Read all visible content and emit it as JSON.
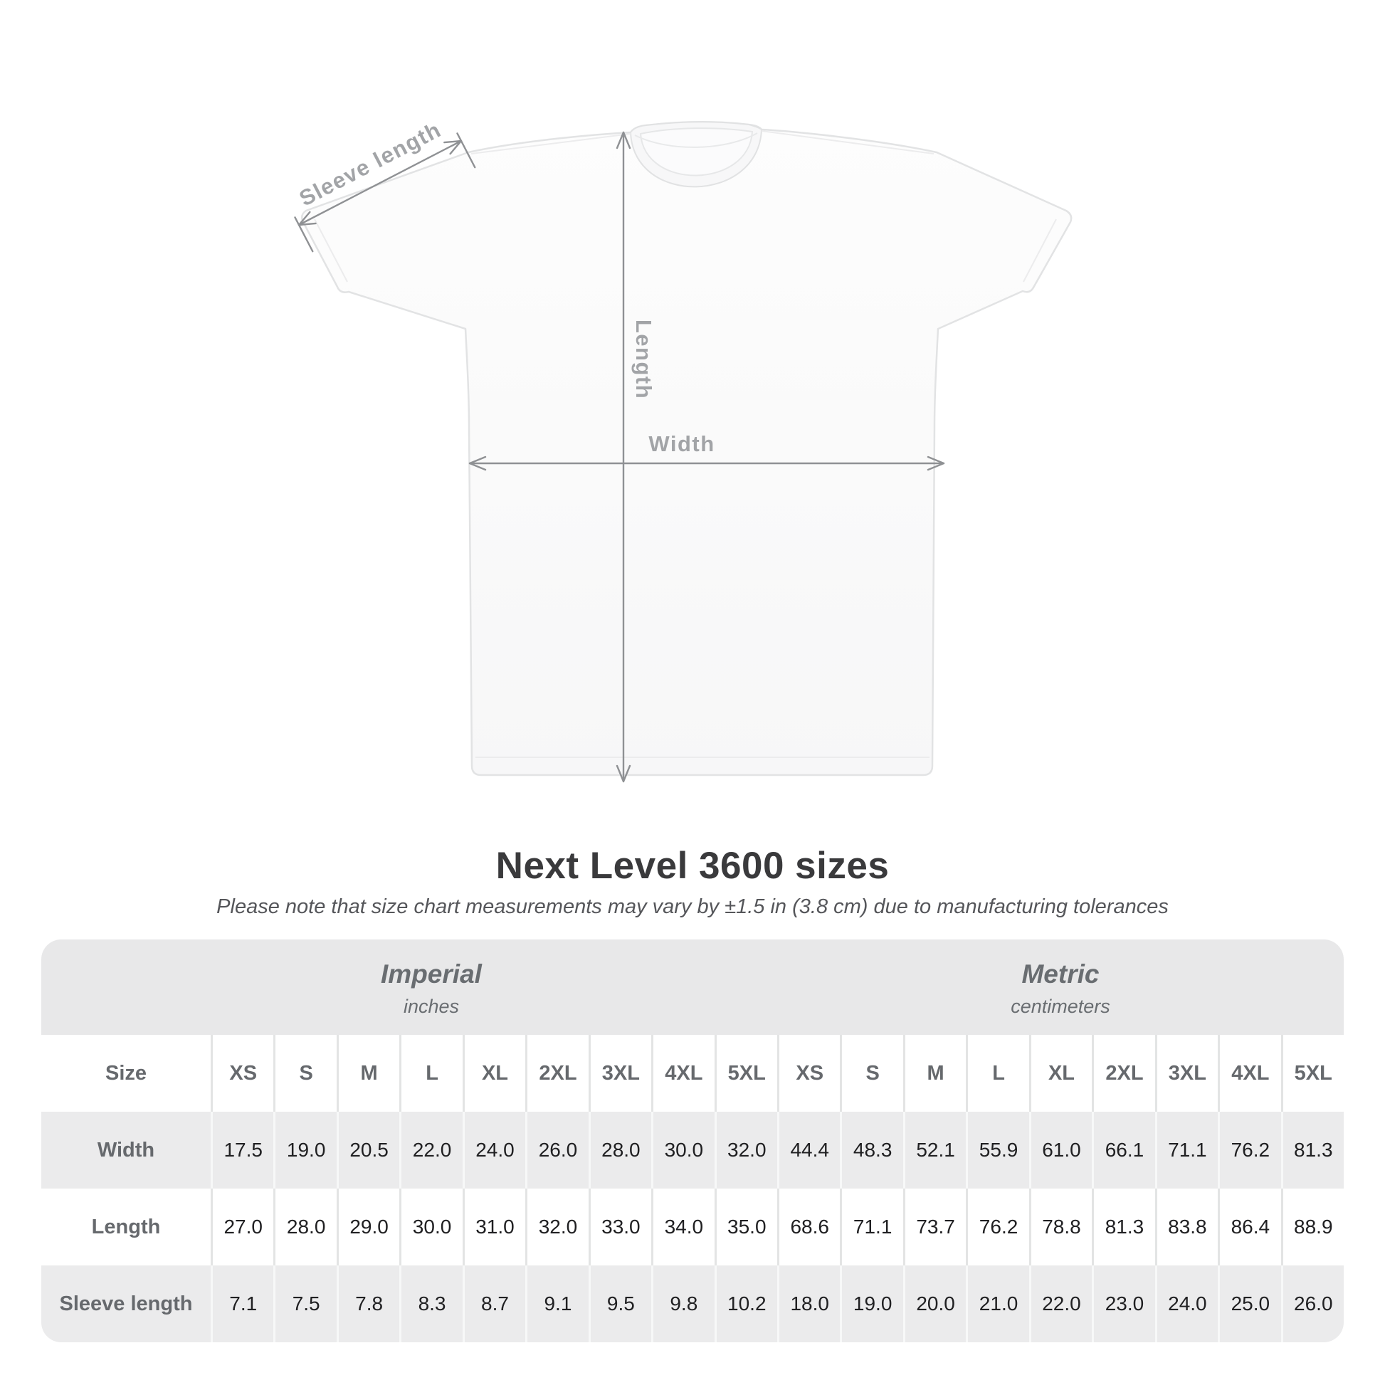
{
  "shirt_diagram": {
    "sleeve_label": "Sleeve length",
    "length_label": "Length",
    "width_label": "Width"
  },
  "heading": {
    "title": "Next Level 3600 sizes",
    "subtitle": "Please note that size chart measurements may vary by ±1.5 in (3.8 cm) due to manufacturing tolerances"
  },
  "chart_data": {
    "type": "table",
    "title": "Next Level 3600 sizes",
    "note": "Please note that size chart measurements may vary by ±1.5 in (3.8 cm) due to manufacturing tolerances",
    "unit_groups": [
      {
        "name": "Imperial",
        "unit": "inches"
      },
      {
        "name": "Metric",
        "unit": "centimeters"
      }
    ],
    "columns": [
      "Size",
      "XS",
      "S",
      "M",
      "L",
      "XL",
      "2XL",
      "3XL",
      "4XL",
      "5XL",
      "XS",
      "S",
      "M",
      "L",
      "XL",
      "2XL",
      "3XL",
      "4XL",
      "5XL"
    ],
    "rows": [
      [
        "Width",
        "17.5",
        "19.0",
        "20.5",
        "22.0",
        "24.0",
        "26.0",
        "28.0",
        "30.0",
        "32.0",
        "44.4",
        "48.3",
        "52.1",
        "55.9",
        "61.0",
        "66.1",
        "71.1",
        "76.2",
        "81.3"
      ],
      [
        "Length",
        "27.0",
        "28.0",
        "29.0",
        "30.0",
        "31.0",
        "32.0",
        "33.0",
        "34.0",
        "35.0",
        "68.6",
        "71.1",
        "73.7",
        "76.2",
        "78.8",
        "81.3",
        "83.8",
        "86.4",
        "88.9"
      ],
      [
        "Sleeve length",
        "7.1",
        "7.5",
        "7.8",
        "8.3",
        "8.7",
        "9.1",
        "9.5",
        "9.8",
        "10.2",
        "18.0",
        "19.0",
        "20.0",
        "21.0",
        "22.0",
        "23.0",
        "24.0",
        "25.0",
        "26.0"
      ]
    ]
  },
  "colors": {
    "band_gray": "#e8e8e9",
    "row_shade_gray": "#ebebec",
    "annotation_line": "#8f9194",
    "annotation_label": "#a2a4a7",
    "title_text": "#3a3a3c",
    "table_header_text": "#66696d",
    "number_text": "#202022"
  }
}
